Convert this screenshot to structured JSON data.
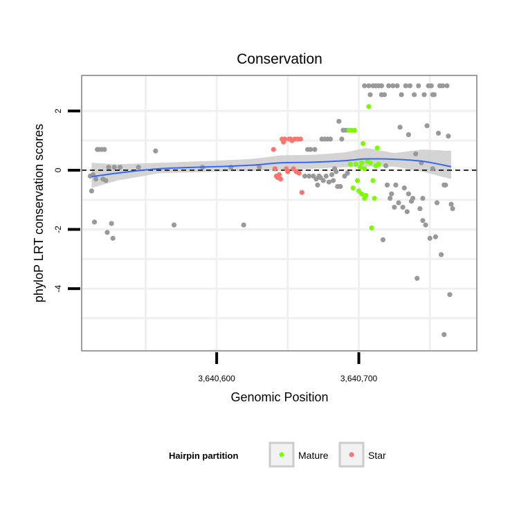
{
  "chart_data": {
    "type": "scatter",
    "title": "Conservation",
    "xlabel": "Genomic Position",
    "ylabel": "phyloP LRT conservation scores",
    "xlim": [
      3640505,
      3640783
    ],
    "ylim": [
      -6.1,
      3.2
    ],
    "x_ticks": [
      {
        "value": 3640600,
        "label": "3,640,600"
      },
      {
        "value": 3640700,
        "label": "3,640,700"
      }
    ],
    "y_ticks": [
      {
        "value": 2,
        "label": "2"
      },
      {
        "value": 0,
        "label": "0"
      },
      {
        "value": -2,
        "label": "-2"
      },
      {
        "value": -4,
        "label": "-4"
      }
    ],
    "minor_x": [
      3640550,
      3640650,
      3640750
    ],
    "minor_y": [
      1,
      -1,
      -3,
      -5
    ],
    "reference_line": {
      "y": 0,
      "style": "dashed"
    },
    "legend": {
      "title": "Hairpin partition",
      "entries": [
        {
          "label": "Mature",
          "color": "#7CFC00"
        },
        {
          "label": "Star",
          "color": "#F8766D"
        }
      ]
    },
    "colors": {
      "other": "#999999",
      "smooth": "#3366FF",
      "band": "#CCCCCC",
      "border": "#7F7F7F",
      "grid": "#F0F0F0"
    },
    "series": [
      {
        "name": "Other",
        "color": "#999999",
        "points": [
          [
            3640511,
            -0.2
          ],
          [
            3640512,
            -0.7
          ],
          [
            3640513,
            -0.15
          ],
          [
            3640514,
            -1.75
          ],
          [
            3640515,
            -0.3
          ],
          [
            3640516,
            0.7
          ],
          [
            3640517,
            0.7
          ],
          [
            3640519,
            0.7
          ],
          [
            3640520,
            -0.3
          ],
          [
            3640521,
            0.7
          ],
          [
            3640522,
            -0.35
          ],
          [
            3640523,
            -2.1
          ],
          [
            3640524,
            0.1
          ],
          [
            3640526,
            -1.8
          ],
          [
            3640527,
            -2.3
          ],
          [
            3640528,
            0.1
          ],
          [
            3640532,
            0.1
          ],
          [
            3640545,
            0.1
          ],
          [
            3640557,
            0.65
          ],
          [
            3640570,
            -1.85
          ],
          [
            3640590,
            0.1
          ],
          [
            3640610,
            0.1
          ],
          [
            3640619,
            -1.85
          ],
          [
            3640630,
            0.1
          ],
          [
            3640662,
            -0.2
          ],
          [
            3640664,
            0.7
          ],
          [
            3640665,
            -0.2
          ],
          [
            3640666,
            0.7
          ],
          [
            3640668,
            -0.2
          ],
          [
            3640669,
            0.7
          ],
          [
            3640670,
            -0.3
          ],
          [
            3640671,
            -0.5
          ],
          [
            3640672,
            -0.2
          ],
          [
            3640673,
            -0.25
          ],
          [
            3640674,
            1.05
          ],
          [
            3640675,
            -0.35
          ],
          [
            3640676,
            1.05
          ],
          [
            3640677,
            -0.2
          ],
          [
            3640678,
            1.05
          ],
          [
            3640679,
            -0.4
          ],
          [
            3640680,
            1.05
          ],
          [
            3640681,
            -0.15
          ],
          [
            3640682,
            -0.35
          ],
          [
            3640683,
            0.05
          ],
          [
            3640684,
            -0.05
          ],
          [
            3640685,
            -0.55
          ],
          [
            3640686,
            1.65
          ],
          [
            3640687,
            -0.55
          ],
          [
            3640688,
            1.05
          ],
          [
            3640689,
            1.35
          ],
          [
            3640690,
            -0.2
          ],
          [
            3640691,
            1.35
          ],
          [
            3640692,
            -0.1
          ],
          [
            3640704,
            2.85
          ],
          [
            3640707,
            2.85
          ],
          [
            3640708,
            2.55
          ],
          [
            3640710,
            2.85
          ],
          [
            3640712,
            2.85
          ],
          [
            3640714,
            2.85
          ],
          [
            3640716,
            2.85
          ],
          [
            3640716,
            2.55
          ],
          [
            3640717,
            -2.35
          ],
          [
            3640718,
            2.55
          ],
          [
            3640719,
            0.15
          ],
          [
            3640720,
            -0.5
          ],
          [
            3640721,
            2.85
          ],
          [
            3640722,
            -0.95
          ],
          [
            3640723,
            -0.8
          ],
          [
            3640724,
            2.85
          ],
          [
            3640725,
            -1.25
          ],
          [
            3640726,
            -0.5
          ],
          [
            3640727,
            2.85
          ],
          [
            3640728,
            -1.1
          ],
          [
            3640729,
            1.45
          ],
          [
            3640730,
            2.55
          ],
          [
            3640731,
            -1.25
          ],
          [
            3640732,
            -0.6
          ],
          [
            3640733,
            2.85
          ],
          [
            3640734,
            -1.4
          ],
          [
            3640735,
            -0.8
          ],
          [
            3640736,
            2.85
          ],
          [
            3640737,
            -1.05
          ],
          [
            3640738,
            -0.95
          ],
          [
            3640739,
            2.55
          ],
          [
            3640740,
            0.55
          ],
          [
            3640741,
            -3.65
          ],
          [
            3640742,
            2.85
          ],
          [
            3640743,
            -1.3
          ],
          [
            3640744,
            0.25
          ],
          [
            3640745,
            -1.7
          ],
          [
            3640746,
            2.55
          ],
          [
            3640747,
            -1.85
          ],
          [
            3640748,
            1.5
          ],
          [
            3640749,
            2.85
          ],
          [
            3640750,
            -2.3
          ],
          [
            3640751,
            2.85
          ],
          [
            3640752,
            0.05
          ],
          [
            3640753,
            2.55
          ],
          [
            3640754,
            -2.25
          ],
          [
            3640755,
            -1.1
          ],
          [
            3640756,
            1.25
          ],
          [
            3640757,
            2.85
          ],
          [
            3640758,
            -2.85
          ],
          [
            3640759,
            2.85
          ],
          [
            3640760,
            -0.5
          ],
          [
            3640761,
            -0.5
          ],
          [
            3640762,
            2.85
          ],
          [
            3640763,
            1.15
          ],
          [
            3640764,
            -4.2
          ],
          [
            3640765,
            -1.15
          ],
          [
            3640766,
            -1.3
          ],
          [
            3640760,
            -5.55
          ],
          [
            3640735,
            1.2
          ],
          [
            3640752,
            2.55
          ],
          [
            3640745,
            -0.95
          ]
        ]
      },
      {
        "name": "Star",
        "color": "#F8766D",
        "points": [
          [
            3640640,
            0.7
          ],
          [
            3640641,
            0.05
          ],
          [
            3640642,
            -0.2
          ],
          [
            3640643,
            -0.25
          ],
          [
            3640644,
            -0.15
          ],
          [
            3640645,
            -0.3
          ],
          [
            3640646,
            1.05
          ],
          [
            3640647,
            0.95
          ],
          [
            3640648,
            1.05
          ],
          [
            3640649,
            0.05
          ],
          [
            3640650,
            -0.05
          ],
          [
            3640651,
            1.05
          ],
          [
            3640652,
            1.05
          ],
          [
            3640653,
            1.0
          ],
          [
            3640654,
            0.05
          ],
          [
            3640655,
            1.05
          ],
          [
            3640656,
            -0.05
          ],
          [
            3640657,
            1.05
          ],
          [
            3640658,
            -0.1
          ],
          [
            3640659,
            1.05
          ],
          [
            3640660,
            -0.75
          ]
        ]
      },
      {
        "name": "Mature",
        "color": "#7CFC00",
        "points": [
          [
            3640693,
            1.35
          ],
          [
            3640694,
            0.2
          ],
          [
            3640695,
            1.35
          ],
          [
            3640696,
            -0.6
          ],
          [
            3640697,
            1.35
          ],
          [
            3640698,
            0.2
          ],
          [
            3640699,
            -0.35
          ],
          [
            3640700,
            -0.7
          ],
          [
            3640701,
            0.1
          ],
          [
            3640702,
            -0.8
          ],
          [
            3640703,
            0.9
          ],
          [
            3640704,
            -0.95
          ],
          [
            3640705,
            -0.85
          ],
          [
            3640706,
            0.3
          ],
          [
            3640707,
            2.15
          ],
          [
            3640708,
            0.25
          ],
          [
            3640709,
            -1.95
          ],
          [
            3640710,
            -0.35
          ],
          [
            3640711,
            -0.95
          ],
          [
            3640712,
            0.15
          ],
          [
            3640713,
            0.75
          ],
          [
            3640714,
            0.2
          ],
          [
            3640702,
            0.25
          ],
          [
            3640704,
            0.05
          ]
        ]
      }
    ],
    "smooth": {
      "points": [
        [
          3640512,
          -0.22
        ],
        [
          3640530,
          -0.1
        ],
        [
          3640560,
          0.05
        ],
        [
          3640600,
          0.12
        ],
        [
          3640625,
          0.17
        ],
        [
          3640645,
          0.25
        ],
        [
          3640668,
          0.27
        ],
        [
          3640690,
          0.32
        ],
        [
          3640705,
          0.38
        ],
        [
          3640725,
          0.37
        ],
        [
          3640745,
          0.3
        ],
        [
          3640765,
          0.12
        ]
      ],
      "band_upper": [
        [
          3640512,
          0.25
        ],
        [
          3640530,
          0.2
        ],
        [
          3640560,
          0.25
        ],
        [
          3640600,
          0.32
        ],
        [
          3640625,
          0.38
        ],
        [
          3640645,
          0.5
        ],
        [
          3640668,
          0.52
        ],
        [
          3640690,
          0.6
        ],
        [
          3640705,
          0.75
        ],
        [
          3640725,
          0.58
        ],
        [
          3640745,
          0.7
        ],
        [
          3640765,
          0.65
        ]
      ],
      "band_lower": [
        [
          3640512,
          -0.6
        ],
        [
          3640530,
          -0.35
        ],
        [
          3640560,
          -0.1
        ],
        [
          3640600,
          -0.05
        ],
        [
          3640625,
          -0.02
        ],
        [
          3640645,
          0.02
        ],
        [
          3640668,
          0.05
        ],
        [
          3640690,
          0.1
        ],
        [
          3640705,
          0.12
        ],
        [
          3640725,
          0.12
        ],
        [
          3640745,
          -0.05
        ],
        [
          3640765,
          -0.3
        ]
      ]
    }
  }
}
